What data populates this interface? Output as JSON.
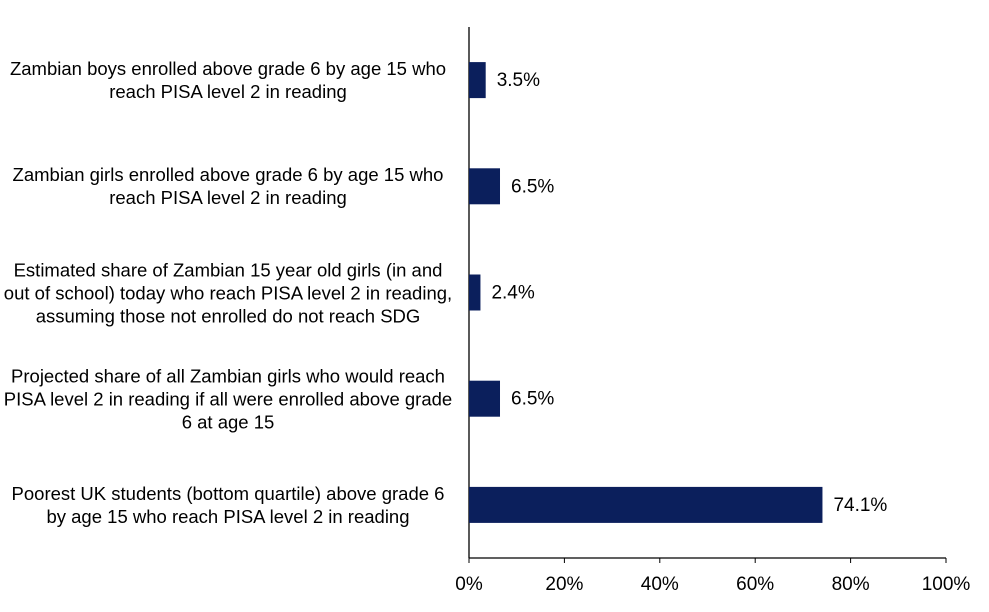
{
  "chart_data": {
    "type": "barh",
    "categories": [
      "Zambian boys enrolled above grade 6 by age 15 who reach PISA level 2 in reading",
      "Zambian girls enrolled above grade 6 by age 15 who reach PISA level 2 in reading",
      "Estimated share of Zambian 15 year old girls (in and out of school) today who reach PISA level 2 in reading, assuming those not enrolled do not reach SDG",
      "Projected share of all Zambian girls who would reach PISA level 2 in reading if all were enrolled above grade 6 at age 15",
      "Poorest UK students (bottom quartile) above grade 6 by age 15 who reach PISA level 2 in reading"
    ],
    "values": [
      3.5,
      6.5,
      2.4,
      6.5,
      74.1
    ],
    "value_labels": [
      "3.5%",
      "6.5%",
      "2.4%",
      "6.5%",
      "74.1%"
    ],
    "color": "#0b1f5c",
    "xlim": [
      0,
      100
    ],
    "xticks": [
      {
        "value": 0,
        "label": "0%"
      },
      {
        "value": 20,
        "label": "20%"
      },
      {
        "value": 40,
        "label": "40%"
      },
      {
        "value": 60,
        "label": "60%"
      },
      {
        "value": 80,
        "label": "80%"
      },
      {
        "value": 100,
        "label": "100%"
      }
    ]
  }
}
